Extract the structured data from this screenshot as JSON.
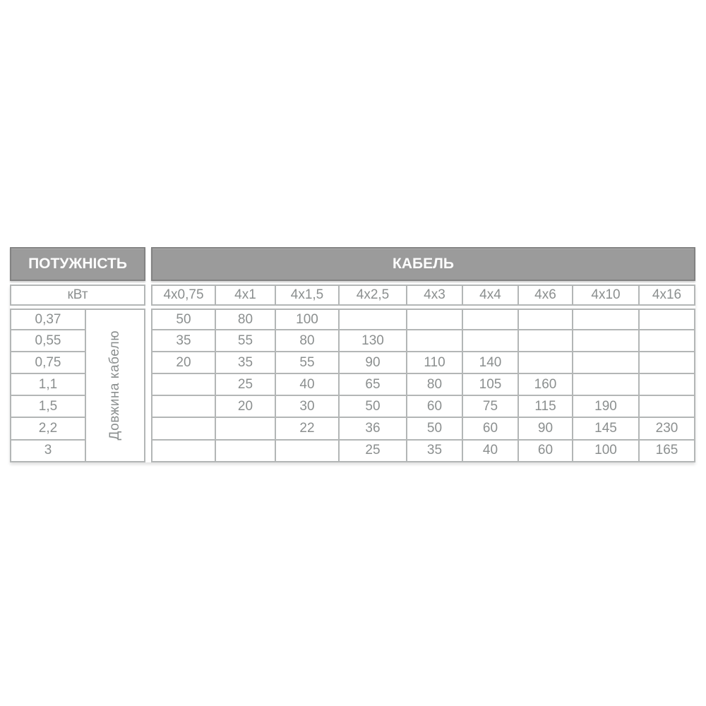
{
  "chart_data": {
    "type": "table",
    "title_power": "ПОТУЖНІСТЬ",
    "title_cable": "КАБЕЛЬ",
    "unit_label": "кВт",
    "length_axis_label": "Довжина кабелю",
    "cable_sections": [
      "4x0,75",
      "4x1",
      "4x1,5",
      "4x2,5",
      "4x3",
      "4x4",
      "4x6",
      "4x10",
      "4x16"
    ],
    "rows": [
      {
        "power_kw": "0,37",
        "lengths": [
          "50",
          "80",
          "100",
          "",
          "",
          "",
          "",
          "",
          ""
        ]
      },
      {
        "power_kw": "0,55",
        "lengths": [
          "35",
          "55",
          "80",
          "130",
          "",
          "",
          "",
          "",
          ""
        ]
      },
      {
        "power_kw": "0,75",
        "lengths": [
          "20",
          "35",
          "55",
          "90",
          "110",
          "140",
          "",
          "",
          ""
        ]
      },
      {
        "power_kw": "1,1",
        "lengths": [
          "",
          "25",
          "40",
          "65",
          "80",
          "105",
          "160",
          "",
          ""
        ]
      },
      {
        "power_kw": "1,5",
        "lengths": [
          "",
          "20",
          "30",
          "50",
          "60",
          "75",
          "115",
          "190",
          ""
        ]
      },
      {
        "power_kw": "2,2",
        "lengths": [
          "",
          "",
          "22",
          "36",
          "50",
          "60",
          "90",
          "145",
          "230"
        ]
      },
      {
        "power_kw": "3",
        "lengths": [
          "",
          "",
          "",
          "25",
          "35",
          "40",
          "60",
          "100",
          "165"
        ]
      }
    ]
  },
  "colors": {
    "header_bg": "#9b9b9b",
    "header_border": "#828282",
    "header_text": "#fdfdfd",
    "grid_border": "#b3b6b6",
    "cell_text": "#8b8f8f",
    "background": "#ffffff"
  }
}
